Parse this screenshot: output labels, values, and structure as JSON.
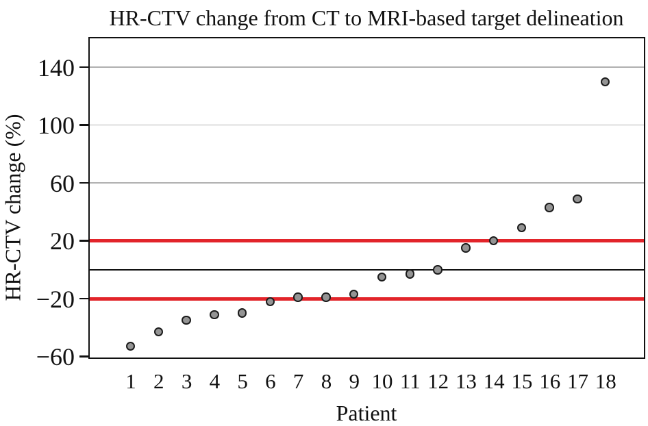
{
  "figure": {
    "title": "HR-CTV change from CT to MRI-based target delineation",
    "x_axis_title": "Patient",
    "y_axis_title": "HR-CTV change (%)"
  },
  "chart_data": {
    "type": "scatter",
    "title": "HR-CTV change from CT to MRI-based target delineation",
    "xlabel": "Patient",
    "ylabel": "HR-CTV change (%)",
    "x": [
      1,
      2,
      3,
      4,
      5,
      6,
      7,
      8,
      9,
      10,
      11,
      12,
      13,
      14,
      15,
      16,
      17,
      18
    ],
    "values": [
      -53,
      -43,
      -35,
      -31,
      -30,
      -22,
      -19,
      -19,
      -17,
      -5,
      -3,
      0,
      15,
      20,
      29,
      43,
      49,
      130
    ],
    "ylim": [
      -60,
      160
    ],
    "yticks": [
      140,
      100,
      60,
      20,
      -20,
      -60
    ],
    "gridlines": [
      140,
      100,
      60
    ],
    "reference_lines": [
      {
        "name": "upper-threshold-line",
        "value": 20,
        "color": "#e2242a",
        "thickness": 5
      },
      {
        "name": "lower-threshold-line",
        "value": -20,
        "color": "#e2242a",
        "thickness": 5
      },
      {
        "name": "zero-line",
        "value": 0,
        "color": "#111111",
        "thickness": 2.2
      }
    ],
    "grid": true,
    "legend": "none",
    "colors": {
      "point_fill": "#949494",
      "point_border": "#1b1b1b",
      "gridline": "#b0b0b0",
      "axis": "#111111",
      "threshold_red": "#e2242a"
    },
    "x_layout": {
      "first_frac": 0.0737,
      "step_frac": 0.0505
    }
  }
}
